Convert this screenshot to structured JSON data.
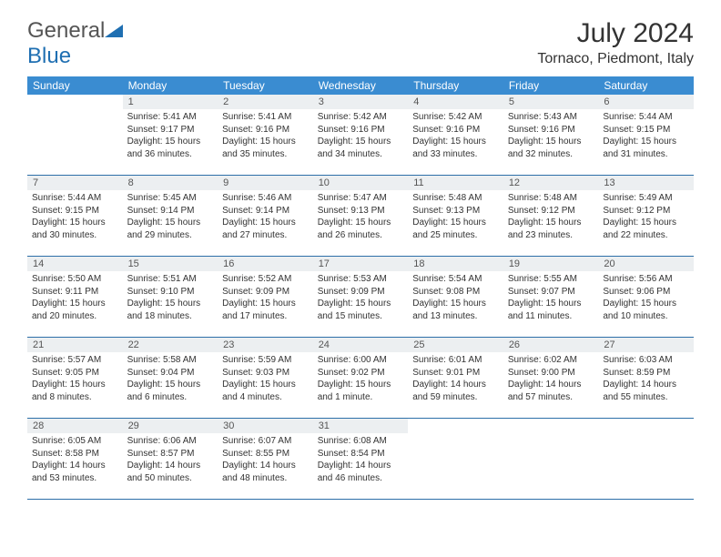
{
  "logo": {
    "text_a": "General",
    "text_b": "Blue"
  },
  "title": "July 2024",
  "location": "Tornaco, Piedmont, Italy",
  "colors": {
    "header_bg": "#3a8cd1",
    "header_text": "#ffffff",
    "daynum_bg": "#eceff1",
    "row_border": "#2d6fa8",
    "logo_blue": "#1f6fb2"
  },
  "dow": [
    "Sunday",
    "Monday",
    "Tuesday",
    "Wednesday",
    "Thursday",
    "Friday",
    "Saturday"
  ],
  "weeks": [
    [
      null,
      {
        "n": "1",
        "sr": "5:41 AM",
        "ss": "9:17 PM",
        "dl": "15 hours and 36 minutes."
      },
      {
        "n": "2",
        "sr": "5:41 AM",
        "ss": "9:16 PM",
        "dl": "15 hours and 35 minutes."
      },
      {
        "n": "3",
        "sr": "5:42 AM",
        "ss": "9:16 PM",
        "dl": "15 hours and 34 minutes."
      },
      {
        "n": "4",
        "sr": "5:42 AM",
        "ss": "9:16 PM",
        "dl": "15 hours and 33 minutes."
      },
      {
        "n": "5",
        "sr": "5:43 AM",
        "ss": "9:16 PM",
        "dl": "15 hours and 32 minutes."
      },
      {
        "n": "6",
        "sr": "5:44 AM",
        "ss": "9:15 PM",
        "dl": "15 hours and 31 minutes."
      }
    ],
    [
      {
        "n": "7",
        "sr": "5:44 AM",
        "ss": "9:15 PM",
        "dl": "15 hours and 30 minutes."
      },
      {
        "n": "8",
        "sr": "5:45 AM",
        "ss": "9:14 PM",
        "dl": "15 hours and 29 minutes."
      },
      {
        "n": "9",
        "sr": "5:46 AM",
        "ss": "9:14 PM",
        "dl": "15 hours and 27 minutes."
      },
      {
        "n": "10",
        "sr": "5:47 AM",
        "ss": "9:13 PM",
        "dl": "15 hours and 26 minutes."
      },
      {
        "n": "11",
        "sr": "5:48 AM",
        "ss": "9:13 PM",
        "dl": "15 hours and 25 minutes."
      },
      {
        "n": "12",
        "sr": "5:48 AM",
        "ss": "9:12 PM",
        "dl": "15 hours and 23 minutes."
      },
      {
        "n": "13",
        "sr": "5:49 AM",
        "ss": "9:12 PM",
        "dl": "15 hours and 22 minutes."
      }
    ],
    [
      {
        "n": "14",
        "sr": "5:50 AM",
        "ss": "9:11 PM",
        "dl": "15 hours and 20 minutes."
      },
      {
        "n": "15",
        "sr": "5:51 AM",
        "ss": "9:10 PM",
        "dl": "15 hours and 18 minutes."
      },
      {
        "n": "16",
        "sr": "5:52 AM",
        "ss": "9:09 PM",
        "dl": "15 hours and 17 minutes."
      },
      {
        "n": "17",
        "sr": "5:53 AM",
        "ss": "9:09 PM",
        "dl": "15 hours and 15 minutes."
      },
      {
        "n": "18",
        "sr": "5:54 AM",
        "ss": "9:08 PM",
        "dl": "15 hours and 13 minutes."
      },
      {
        "n": "19",
        "sr": "5:55 AM",
        "ss": "9:07 PM",
        "dl": "15 hours and 11 minutes."
      },
      {
        "n": "20",
        "sr": "5:56 AM",
        "ss": "9:06 PM",
        "dl": "15 hours and 10 minutes."
      }
    ],
    [
      {
        "n": "21",
        "sr": "5:57 AM",
        "ss": "9:05 PM",
        "dl": "15 hours and 8 minutes."
      },
      {
        "n": "22",
        "sr": "5:58 AM",
        "ss": "9:04 PM",
        "dl": "15 hours and 6 minutes."
      },
      {
        "n": "23",
        "sr": "5:59 AM",
        "ss": "9:03 PM",
        "dl": "15 hours and 4 minutes."
      },
      {
        "n": "24",
        "sr": "6:00 AM",
        "ss": "9:02 PM",
        "dl": "15 hours and 1 minute."
      },
      {
        "n": "25",
        "sr": "6:01 AM",
        "ss": "9:01 PM",
        "dl": "14 hours and 59 minutes."
      },
      {
        "n": "26",
        "sr": "6:02 AM",
        "ss": "9:00 PM",
        "dl": "14 hours and 57 minutes."
      },
      {
        "n": "27",
        "sr": "6:03 AM",
        "ss": "8:59 PM",
        "dl": "14 hours and 55 minutes."
      }
    ],
    [
      {
        "n": "28",
        "sr": "6:05 AM",
        "ss": "8:58 PM",
        "dl": "14 hours and 53 minutes."
      },
      {
        "n": "29",
        "sr": "6:06 AM",
        "ss": "8:57 PM",
        "dl": "14 hours and 50 minutes."
      },
      {
        "n": "30",
        "sr": "6:07 AM",
        "ss": "8:55 PM",
        "dl": "14 hours and 48 minutes."
      },
      {
        "n": "31",
        "sr": "6:08 AM",
        "ss": "8:54 PM",
        "dl": "14 hours and 46 minutes."
      },
      null,
      null,
      null
    ]
  ],
  "labels": {
    "sunrise": "Sunrise:",
    "sunset": "Sunset:",
    "daylight": "Daylight:"
  }
}
